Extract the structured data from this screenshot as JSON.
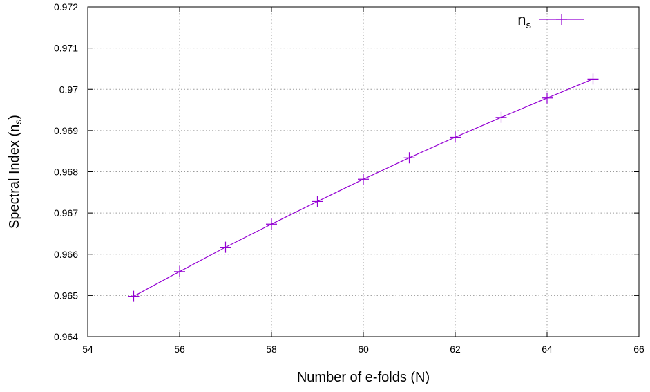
{
  "chart_data": {
    "type": "line",
    "xlabel": "Number of e-folds (N)",
    "ylabel": {
      "main": "Spectral Index (n",
      "sub": "s",
      "close": ")"
    },
    "xlim": [
      54,
      66
    ],
    "ylim": [
      0.964,
      0.972
    ],
    "x_ticks": [
      "54",
      "56",
      "58",
      "60",
      "62",
      "64",
      "66"
    ],
    "y_ticks": [
      "0.964",
      "0.965",
      "0.966",
      "0.967",
      "0.968",
      "0.969",
      "0.97",
      "0.971",
      "0.972"
    ],
    "grid": true,
    "legend_position": "top-right",
    "series": [
      {
        "name": {
          "main": "n",
          "sub": "s"
        },
        "color": "#9400d3",
        "marker": "plus",
        "x": [
          55,
          56,
          57,
          58,
          59,
          60,
          61,
          62,
          63,
          64,
          65
        ],
        "y": [
          0.96498,
          0.96558,
          0.96617,
          0.96673,
          0.96728,
          0.96782,
          0.96834,
          0.96884,
          0.96932,
          0.96979,
          0.97025
        ]
      }
    ]
  }
}
